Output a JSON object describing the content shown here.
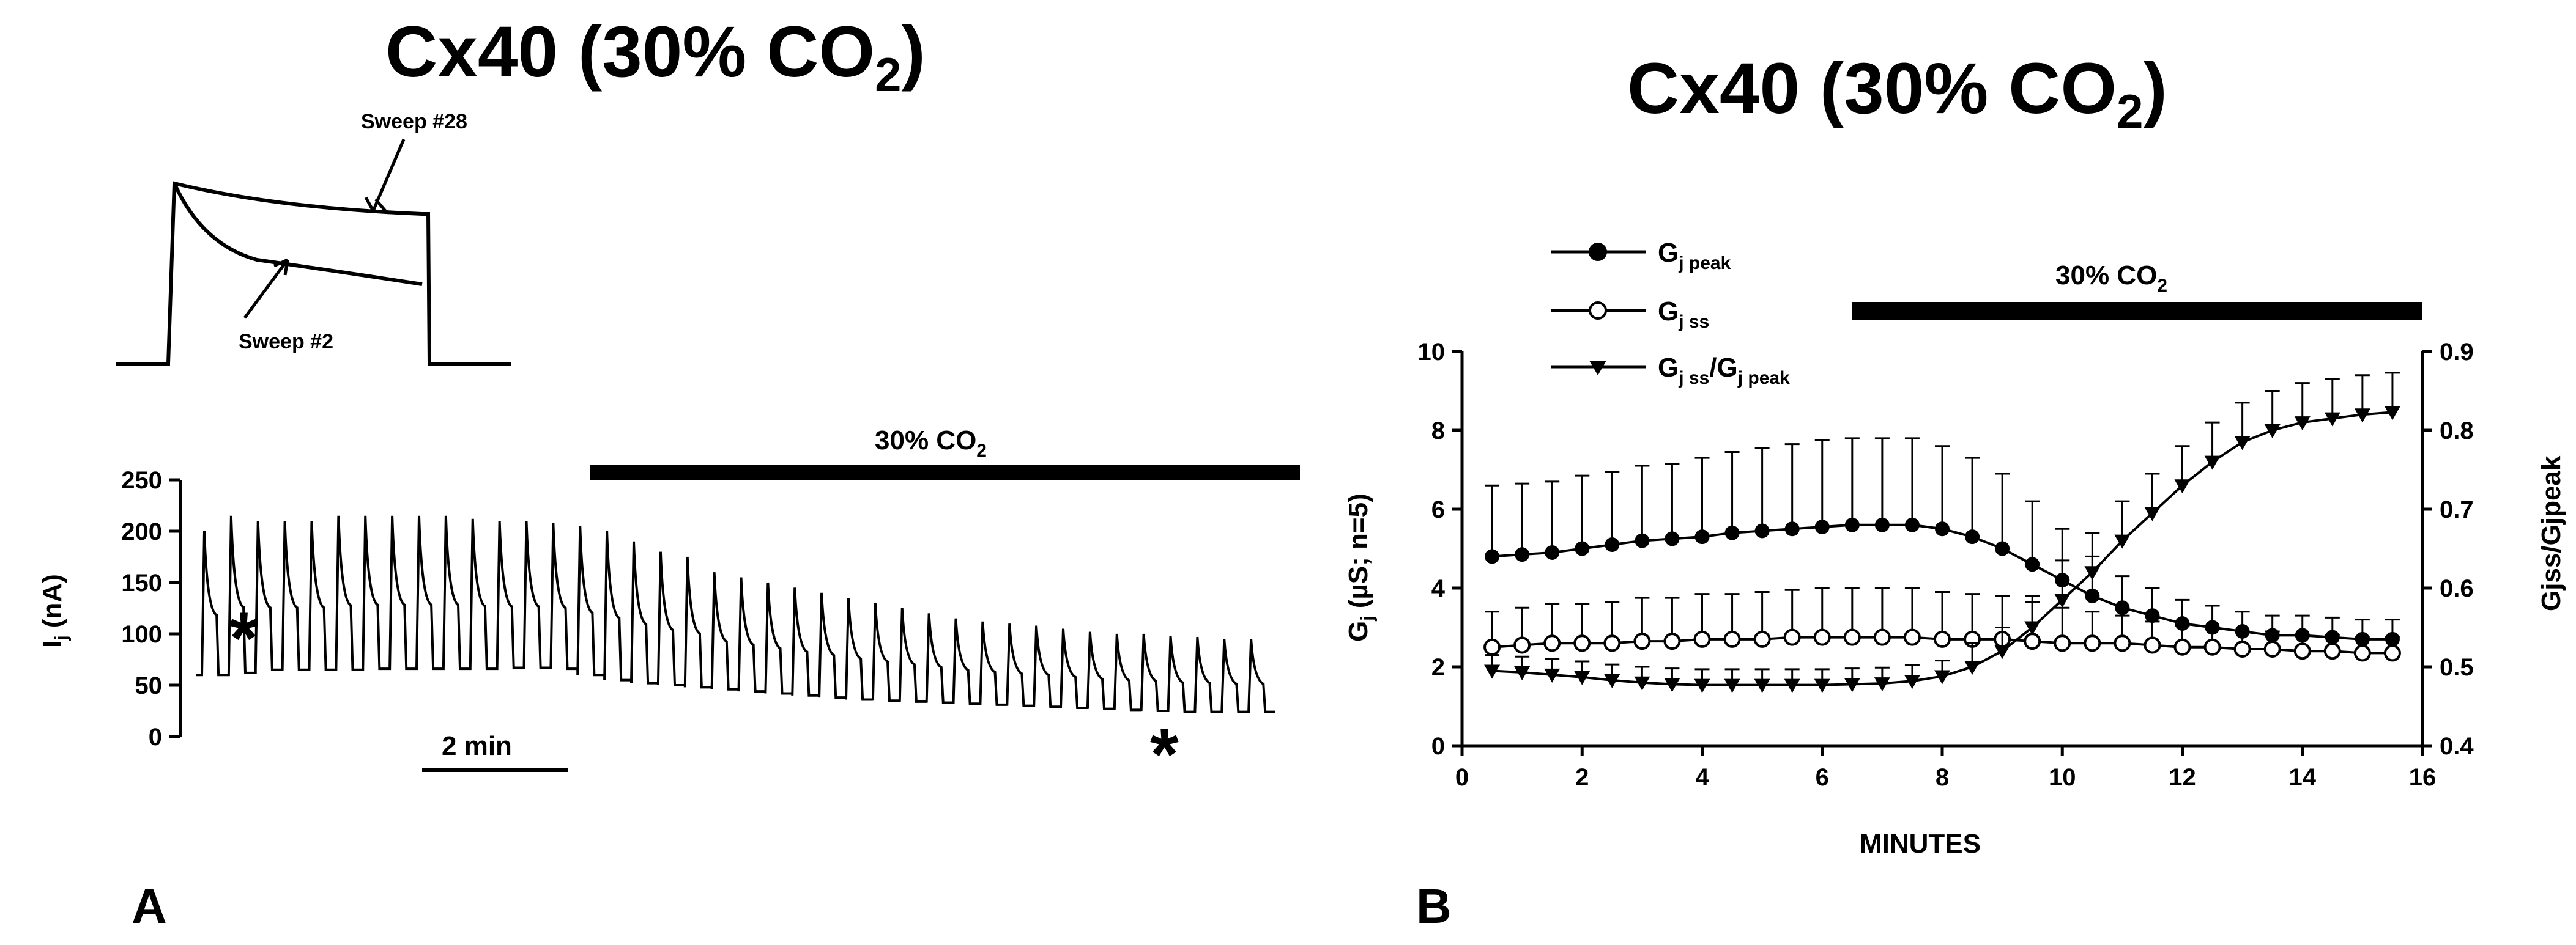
{
  "panels": {
    "A": {
      "letter": "A",
      "title": "Cx40 (30% CO",
      "title_sub": "2",
      "title_end": ")",
      "inset": {
        "sweep_late_label": "Sweep #28",
        "sweep_early_label": "Sweep #2"
      },
      "bar_label": "30% CO",
      "bar_label_sub": "2",
      "scale_bar_label": "2 min",
      "ylabel_main": "I",
      "ylabel_sub": "j",
      "ylabel_unit": " (nA)",
      "star": "*",
      "trace": {
        "ylim": [
          0,
          250
        ],
        "yticks": [
          0,
          50,
          100,
          150,
          200,
          250
        ],
        "pulse_peaks": [
          200,
          215,
          210,
          210,
          210,
          215,
          215,
          215,
          215,
          215,
          212,
          210,
          210,
          208,
          205,
          200,
          190,
          180,
          175,
          160,
          155,
          150,
          145,
          140,
          135,
          130,
          125,
          120,
          115,
          112,
          110,
          108,
          105,
          102,
          100,
          100,
          98,
          97,
          95,
          95
        ],
        "pulse_floors": [
          60,
          62,
          65,
          65,
          65,
          65,
          66,
          66,
          66,
          66,
          66,
          67,
          67,
          66,
          60,
          55,
          52,
          50,
          48,
          46,
          44,
          42,
          40,
          38,
          36,
          35,
          34,
          33,
          32,
          31,
          30,
          29,
          28,
          27,
          26,
          25,
          24,
          24,
          24,
          24
        ],
        "co2_start_pulse": 14
      }
    },
    "B": {
      "letter": "B",
      "title": "Cx40 (30% CO",
      "title_sub": "2",
      "title_end": ")",
      "bar_label": "30% CO",
      "bar_label_sub": "2",
      "co2_start_minute": 6.5,
      "co2_end_minute": 16,
      "legend": {
        "gpeak": {
          "main": "G",
          "sub": "j peak"
        },
        "gss": {
          "main": "G",
          "sub": "j ss"
        },
        "ratio": {
          "main": "G",
          "sub": "j ss",
          "mid": "/G",
          "sub2": "j peak"
        }
      },
      "xlabel": "MINUTES",
      "ylabel_left_main": "G",
      "ylabel_left_sub": "j",
      "ylabel_left_unit": " (µS; n=5)",
      "ylabel_right": "Gjss/Gjpeak"
    }
  },
  "chart_data": [
    {
      "panel": "A",
      "type": "line",
      "title": "Cx40 (30% CO2)",
      "ylabel": "Ij (nA)",
      "ylim": [
        0,
        250
      ],
      "yticks": [
        0,
        50,
        100,
        150,
        200,
        250
      ],
      "x_scale_bar": "2 min",
      "annotation": "30% CO2",
      "series": [
        {
          "name": "pulse peak",
          "values": [
            200,
            215,
            210,
            210,
            210,
            215,
            215,
            215,
            215,
            215,
            212,
            210,
            210,
            208,
            205,
            200,
            190,
            180,
            175,
            160,
            155,
            150,
            145,
            140,
            135,
            130,
            125,
            120,
            115,
            112,
            110,
            108,
            105,
            102,
            100,
            100,
            98,
            97,
            95,
            95
          ]
        },
        {
          "name": "pulse steady-state",
          "values": [
            60,
            62,
            65,
            65,
            65,
            65,
            66,
            66,
            66,
            66,
            66,
            67,
            67,
            66,
            60,
            55,
            52,
            50,
            48,
            46,
            44,
            42,
            40,
            38,
            36,
            35,
            34,
            33,
            32,
            31,
            30,
            29,
            28,
            27,
            26,
            25,
            24,
            24,
            24,
            24
          ]
        }
      ]
    },
    {
      "panel": "B",
      "type": "line",
      "title": "Cx40 (30% CO2)",
      "xlabel": "MINUTES",
      "ylabel": "Gj (µS; n=5)",
      "ylabel_right": "Gjss/Gjpeak",
      "xlim": [
        0,
        16
      ],
      "ylim": [
        0,
        10
      ],
      "ylim_right": [
        0.4,
        0.9
      ],
      "xticks": [
        0,
        2,
        4,
        6,
        8,
        10,
        12,
        14,
        16
      ],
      "yticks": [
        0,
        2,
        4,
        6,
        8,
        10
      ],
      "yticks_right": [
        0.4,
        0.5,
        0.6,
        0.7,
        0.8,
        0.9
      ],
      "legend_position": "top-left",
      "annotation": "30% CO2",
      "x": [
        0.5,
        1.0,
        1.5,
        2.0,
        2.5,
        3.0,
        3.5,
        4.0,
        4.5,
        5.0,
        5.5,
        6.0,
        6.5,
        7.0,
        7.5,
        8.0,
        8.5,
        9.0,
        9.5,
        10.0,
        10.5,
        11.0,
        11.5,
        12.0,
        12.5,
        13.0,
        13.5,
        14.0,
        14.5,
        15.0,
        15.5
      ],
      "series": [
        {
          "name": "Gj peak",
          "marker": "filled-circle",
          "axis": "left",
          "values": [
            4.8,
            4.85,
            4.9,
            5.0,
            5.1,
            5.2,
            5.25,
            5.3,
            5.4,
            5.45,
            5.5,
            5.55,
            5.6,
            5.6,
            5.6,
            5.5,
            5.3,
            5.0,
            4.6,
            4.2,
            3.8,
            3.5,
            3.3,
            3.1,
            3.0,
            2.9,
            2.8,
            2.8,
            2.75,
            2.7,
            2.7
          ],
          "error": [
            1.8,
            1.8,
            1.8,
            1.85,
            1.85,
            1.9,
            1.9,
            2.0,
            2.05,
            2.1,
            2.15,
            2.2,
            2.2,
            2.2,
            2.2,
            2.1,
            2.0,
            1.9,
            1.6,
            1.3,
            1.0,
            0.8,
            0.7,
            0.6,
            0.55,
            0.5,
            0.5,
            0.5,
            0.5,
            0.5,
            0.5
          ]
        },
        {
          "name": "Gj ss",
          "marker": "open-circle",
          "axis": "left",
          "values": [
            2.5,
            2.55,
            2.6,
            2.6,
            2.6,
            2.65,
            2.65,
            2.7,
            2.7,
            2.7,
            2.75,
            2.75,
            2.75,
            2.75,
            2.75,
            2.7,
            2.7,
            2.7,
            2.65,
            2.6,
            2.6,
            2.6,
            2.55,
            2.5,
            2.5,
            2.45,
            2.45,
            2.4,
            2.4,
            2.35,
            2.35
          ],
          "error": [
            0.9,
            0.95,
            1.0,
            1.0,
            1.05,
            1.1,
            1.1,
            1.15,
            1.15,
            1.2,
            1.2,
            1.25,
            1.25,
            1.25,
            1.25,
            1.2,
            1.15,
            1.1,
            1.0,
            0.9,
            0.8,
            0.7,
            0.6,
            0.55,
            0.5,
            0.45,
            0.45,
            0.4,
            0.4,
            0.4,
            0.4
          ]
        },
        {
          "name": "Gj ss/Gj peak",
          "marker": "filled-triangle-down",
          "axis": "right",
          "values": [
            0.495,
            0.493,
            0.49,
            0.487,
            0.483,
            0.48,
            0.478,
            0.477,
            0.477,
            0.477,
            0.477,
            0.477,
            0.478,
            0.479,
            0.482,
            0.488,
            0.5,
            0.52,
            0.55,
            0.585,
            0.62,
            0.66,
            0.695,
            0.73,
            0.76,
            0.785,
            0.8,
            0.81,
            0.815,
            0.82,
            0.823
          ],
          "error": [
            0.02,
            0.02,
            0.02,
            0.02,
            0.02,
            0.02,
            0.02,
            0.02,
            0.02,
            0.02,
            0.02,
            0.02,
            0.02,
            0.02,
            0.02,
            0.02,
            0.03,
            0.03,
            0.04,
            0.05,
            0.05,
            0.05,
            0.05,
            0.05,
            0.05,
            0.05,
            0.05,
            0.05,
            0.05,
            0.05,
            0.05
          ]
        }
      ]
    }
  ]
}
